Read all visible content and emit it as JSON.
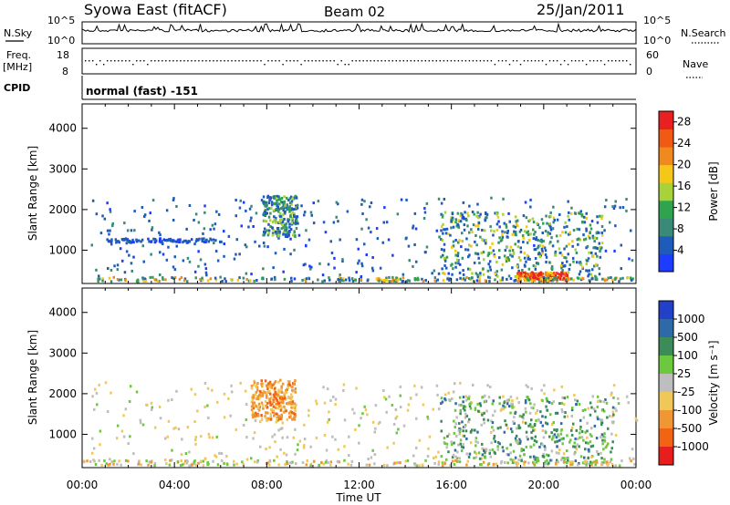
{
  "header": {
    "station": "Syowa East (fitACF)",
    "beam": "Beam 02",
    "date": "25/Jan/2011"
  },
  "panels": {
    "sky": {
      "left_label": "N.Sky",
      "right_label": "N.Search",
      "left_ticks": [
        "10^5",
        "10^0"
      ],
      "right_ticks": [
        "10^5",
        "10^0"
      ]
    },
    "freq": {
      "left_label_1": "Freq.",
      "left_label_2": "[MHz]",
      "right_label": "Nave",
      "left_ticks": [
        "18",
        "8"
      ],
      "right_ticks": [
        "60",
        "0"
      ]
    },
    "cpid": {
      "label": "CPID",
      "value": "normal (fast) -151"
    }
  },
  "colors": {
    "power_scale": [
      "#1e3cff",
      "#1f5bb8",
      "#3a8a78",
      "#2fa34e",
      "#a8d23a",
      "#f5c818",
      "#f08a1e",
      "#f05a14",
      "#e82020"
    ],
    "velocity_scale": [
      "#2240c8",
      "#2f6aa8",
      "#3c8c5a",
      "#6cc83c",
      "#bebebe",
      "#f0c85a",
      "#f09632",
      "#f06414",
      "#e81e1e"
    ]
  },
  "chart_data": [
    {
      "type": "heatmap",
      "name": "power",
      "xlabel": "",
      "ylabel": "Slant Range [km]",
      "x_ticks": [
        "00:00",
        "04:00",
        "08:00",
        "12:00",
        "16:00",
        "20:00",
        "00:00"
      ],
      "y_ticks": [
        1000,
        2000,
        3000,
        4000
      ],
      "ylim": [
        180,
        4600
      ],
      "xlim_hours": [
        0,
        24
      ],
      "colorbar": {
        "label": "Power [dB]",
        "ticks": [
          "4",
          "8",
          "12",
          "16",
          "20",
          "24",
          "28"
        ],
        "range": [
          0,
          30
        ]
      },
      "features": [
        {
          "region": "08:00-09:30",
          "range_km": [
            1200,
            2300
          ],
          "value_db": 10
        },
        {
          "region": "15:30-22:00",
          "range_km": [
            200,
            1900
          ],
          "value_db": 8
        },
        {
          "region": "19:00-20:30",
          "range_km": [
            200,
            500
          ],
          "value_db": 28
        }
      ]
    },
    {
      "type": "heatmap",
      "name": "velocity",
      "xlabel": "Time UT",
      "ylabel": "Slant Range [km]",
      "x_ticks": [
        "00:00",
        "04:00",
        "08:00",
        "12:00",
        "16:00",
        "20:00",
        "00:00"
      ],
      "y_ticks": [
        1000,
        2000,
        3000,
        4000
      ],
      "ylim": [
        180,
        4600
      ],
      "xlim_hours": [
        0,
        24
      ],
      "colorbar": {
        "label": "Velocity [m s⁻¹]",
        "ticks": [
          "1000",
          "500",
          "100",
          "25",
          "-25",
          "-100",
          "-500",
          "-1000"
        ]
      },
      "features": [
        {
          "region": "07:30-09:00",
          "range_km": [
            1300,
            2300
          ],
          "value_ms": -300
        },
        {
          "region": "15:30-23:00",
          "range_km": [
            200,
            1900
          ],
          "value_ms": 150
        }
      ]
    }
  ]
}
